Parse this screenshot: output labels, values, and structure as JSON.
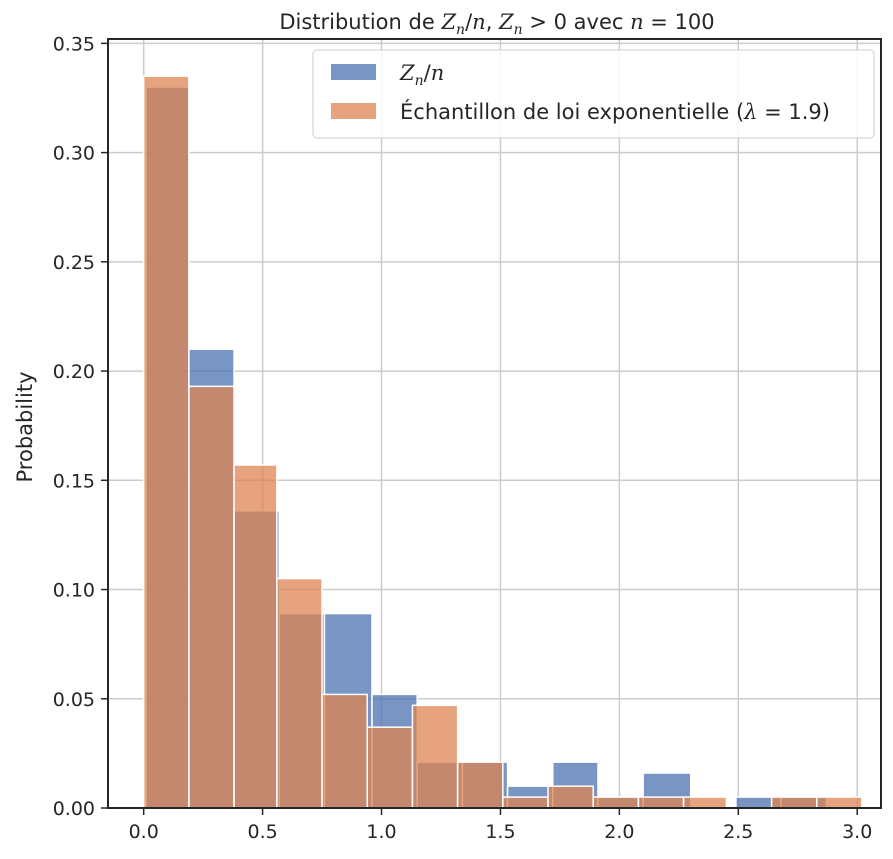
{
  "chart_data": {
    "type": "bar",
    "title_parts": {
      "prefix": "Distribution de ",
      "z": "Z",
      "n_sub": "n",
      "slash": "/",
      "n": "n",
      "comma": ", ",
      "z2": "Z",
      "n_sub2": "n",
      "gt": " > 0 avec ",
      "n3": "n",
      "eq": " = 100"
    },
    "ylabel": "Probability",
    "xlabel": "",
    "xlim": [
      -0.15,
      3.1
    ],
    "ylim": [
      0,
      0.352
    ],
    "xticks": [
      "0.0",
      "0.5",
      "1.0",
      "1.5",
      "2.0",
      "2.5",
      "3.0"
    ],
    "xtick_values": [
      0,
      0.5,
      1.0,
      1.5,
      2.0,
      2.5,
      3.0
    ],
    "yticks": [
      "0.00",
      "0.05",
      "0.10",
      "0.15",
      "0.20",
      "0.25",
      "0.30",
      "0.35"
    ],
    "ytick_values": [
      0,
      0.05,
      0.1,
      0.15,
      0.2,
      0.25,
      0.3,
      0.35
    ],
    "grid": true,
    "legend_position": "top-right",
    "series": [
      {
        "name_parts": {
          "z": "Z",
          "sub": "n",
          "slash": "/",
          "n": "n"
        },
        "color": "#4c72b0",
        "bins": [
          {
            "x0": 0.01,
            "x1": 0.19,
            "value": 0.33
          },
          {
            "x0": 0.19,
            "x1": 0.38,
            "value": 0.21
          },
          {
            "x0": 0.38,
            "x1": 0.57,
            "value": 0.136
          },
          {
            "x0": 0.57,
            "x1": 0.76,
            "value": 0.089
          },
          {
            "x0": 0.76,
            "x1": 0.96,
            "value": 0.089
          },
          {
            "x0": 0.96,
            "x1": 1.15,
            "value": 0.052
          },
          {
            "x0": 1.15,
            "x1": 1.34,
            "value": 0.021
          },
          {
            "x0": 1.34,
            "x1": 1.53,
            "value": 0.021
          },
          {
            "x0": 1.53,
            "x1": 1.72,
            "value": 0.01
          },
          {
            "x0": 1.72,
            "x1": 1.91,
            "value": 0.021
          },
          {
            "x0": 1.91,
            "x1": 2.1,
            "value": 0.005
          },
          {
            "x0": 2.1,
            "x1": 2.3,
            "value": 0.016
          },
          {
            "x0": 2.3,
            "x1": 2.49,
            "value": 0.0
          },
          {
            "x0": 2.49,
            "x1": 2.68,
            "value": 0.005
          },
          {
            "x0": 2.68,
            "x1": 2.87,
            "value": 0.005
          }
        ]
      },
      {
        "name_parts": {
          "text": "Échantillon de loi exponentielle (",
          "lambda": "λ",
          "eq": " = 1.9)"
        },
        "color": "#dd8452",
        "bins": [
          {
            "x0": 0.0,
            "x1": 0.19,
            "value": 0.335
          },
          {
            "x0": 0.19,
            "x1": 0.38,
            "value": 0.193
          },
          {
            "x0": 0.38,
            "x1": 0.56,
            "value": 0.157
          },
          {
            "x0": 0.56,
            "x1": 0.75,
            "value": 0.105
          },
          {
            "x0": 0.75,
            "x1": 0.94,
            "value": 0.052
          },
          {
            "x0": 0.94,
            "x1": 1.13,
            "value": 0.037
          },
          {
            "x0": 1.13,
            "x1": 1.32,
            "value": 0.047
          },
          {
            "x0": 1.32,
            "x1": 1.51,
            "value": 0.021
          },
          {
            "x0": 1.51,
            "x1": 1.7,
            "value": 0.005
          },
          {
            "x0": 1.7,
            "x1": 1.89,
            "value": 0.01
          },
          {
            "x0": 1.89,
            "x1": 2.08,
            "value": 0.005
          },
          {
            "x0": 2.08,
            "x1": 2.27,
            "value": 0.005
          },
          {
            "x0": 2.27,
            "x1": 2.45,
            "value": 0.005
          },
          {
            "x0": 2.45,
            "x1": 2.64,
            "value": 0.0
          },
          {
            "x0": 2.64,
            "x1": 2.83,
            "value": 0.005
          },
          {
            "x0": 2.83,
            "x1": 3.02,
            "value": 0.005
          }
        ]
      }
    ]
  }
}
